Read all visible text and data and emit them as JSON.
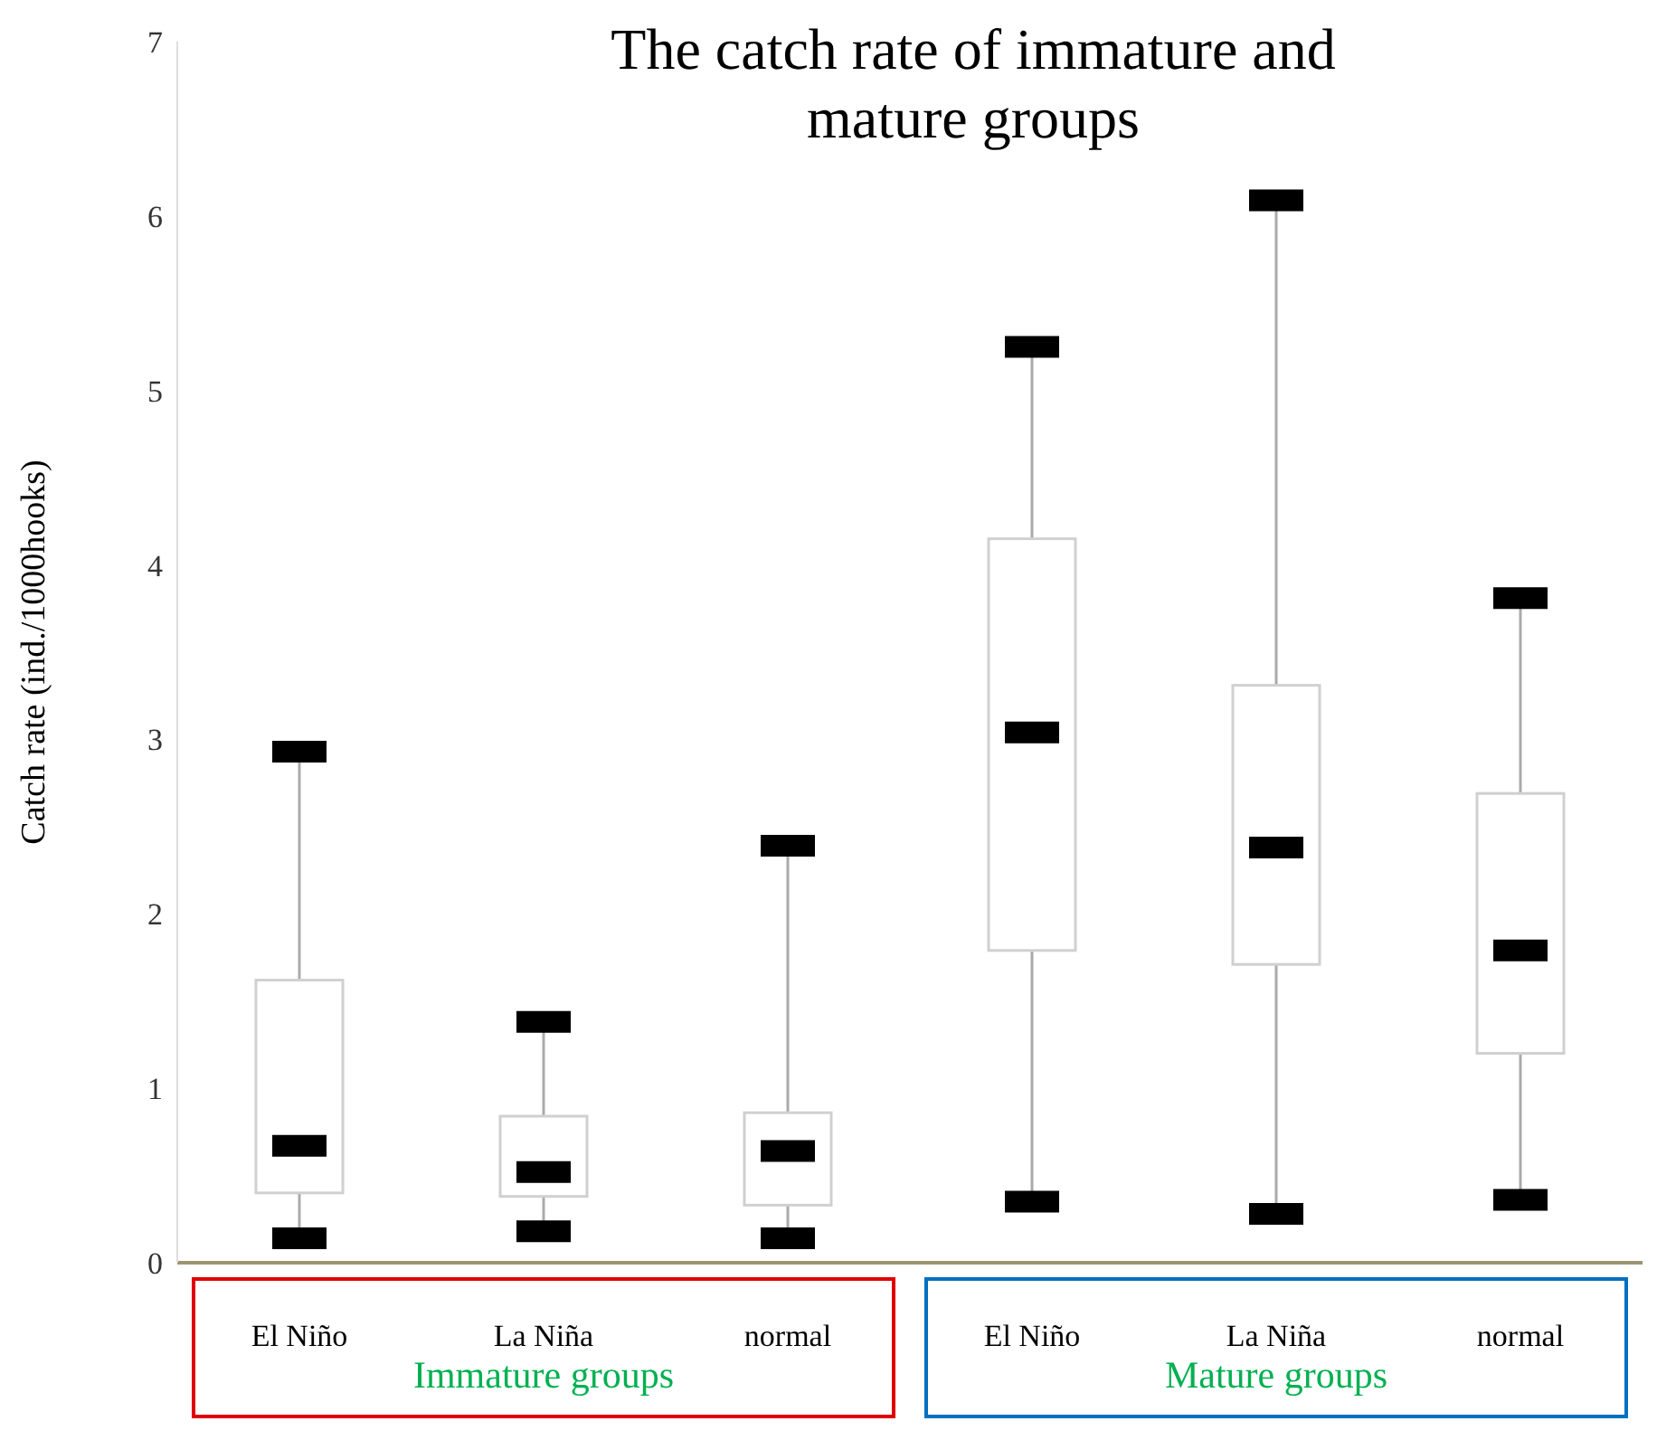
{
  "chart_data": {
    "type": "box",
    "title": "The catch rate of immature and mature groups",
    "ylabel": "Catch rate (ind./1000hooks)",
    "categories": [
      "El Niño",
      "La Niña",
      "normal",
      "El Niño",
      "La Niña",
      "normal"
    ],
    "boxes": [
      {
        "low": 0.14,
        "q1": 0.4,
        "median": 0.67,
        "q3": 1.62,
        "high": 2.93
      },
      {
        "low": 0.18,
        "q1": 0.38,
        "median": 0.52,
        "q3": 0.84,
        "high": 1.38
      },
      {
        "low": 0.14,
        "q1": 0.33,
        "median": 0.64,
        "q3": 0.86,
        "high": 2.39
      },
      {
        "low": 0.35,
        "q1": 1.79,
        "median": 3.04,
        "q3": 4.15,
        "high": 5.25
      },
      {
        "low": 0.28,
        "q1": 1.71,
        "median": 2.38,
        "q3": 3.31,
        "high": 6.09
      },
      {
        "low": 0.36,
        "q1": 1.2,
        "median": 1.79,
        "q3": 2.69,
        "high": 3.81
      }
    ],
    "ylim": [
      0,
      7
    ],
    "yticks": [
      0,
      1,
      2,
      3,
      4,
      5,
      6,
      7
    ],
    "annotations": [
      "Immature groups",
      "Mature groups"
    ]
  }
}
